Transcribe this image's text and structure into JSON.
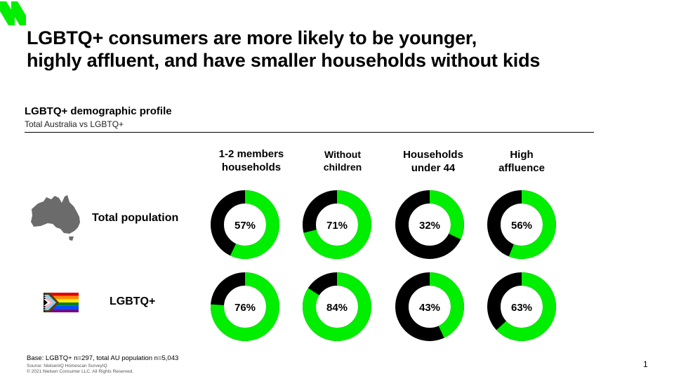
{
  "headline": {
    "line1": "LGBTQ+ consumers are more likely to be younger,",
    "line2": "highly affluent, and have smaller households without kids"
  },
  "colors": {
    "accent": "#00ee00",
    "remainder": "#000000"
  },
  "icons": {
    "brand": "green-slash-logo-icon",
    "total_row": "australia-map-icon",
    "lgbtq_row": "progress-pride-flag-icon"
  },
  "chart_data": {
    "type": "donut",
    "title": "LGBTQ+ demographic profile",
    "subtitle": "Total Australia vs LGBTQ+",
    "unit": "%",
    "categories": [
      [
        "1-2 members",
        "households"
      ],
      [
        "Without",
        "children"
      ],
      [
        "Households",
        "under 44"
      ],
      [
        "High",
        "affluence"
      ]
    ],
    "series": [
      {
        "name": "Total population",
        "values": [
          57,
          71,
          32,
          56
        ]
      },
      {
        "name": "LGBTQ+",
        "values": [
          76,
          84,
          43,
          63
        ]
      }
    ]
  },
  "footer": {
    "base": "Base: LGBTQ+ n=297, total AU population n=5,043",
    "source": "Source: NielsenIQ Homescan SurveyIQ",
    "copyright": "© 2021 Nielsen Consumer LLC. All Rights Reserved.",
    "page_number": "1"
  }
}
